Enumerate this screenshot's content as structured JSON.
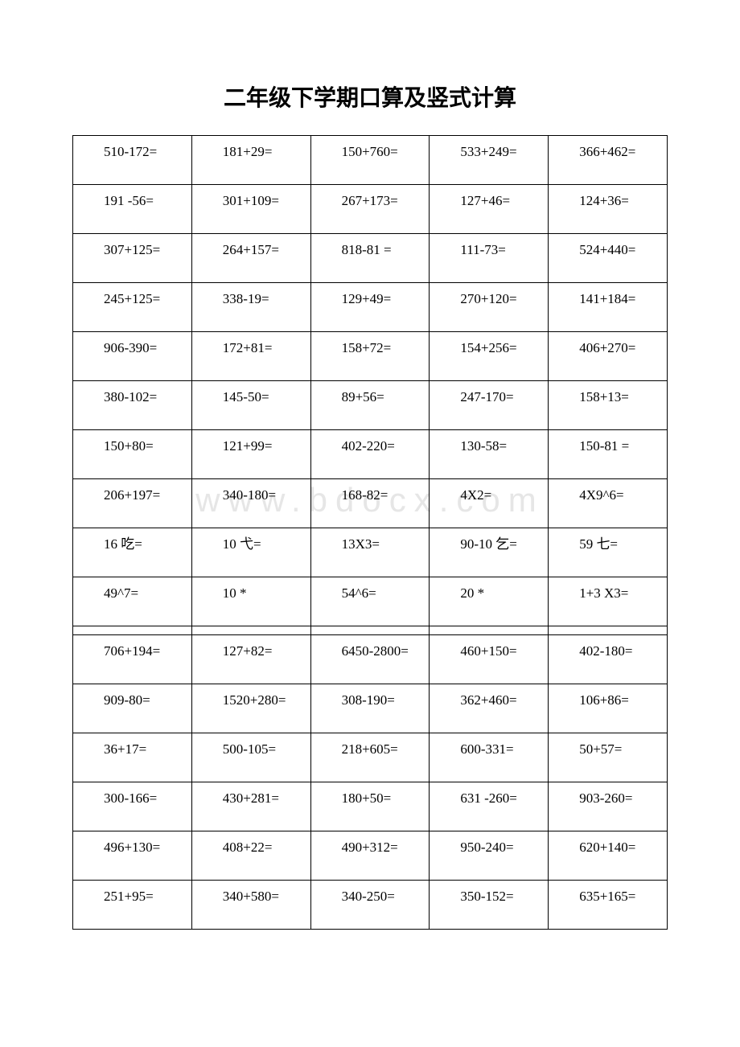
{
  "title": "二年级下学期口算及竖式计算",
  "watermark": "www.bdocx.com",
  "table": {
    "border_color": "#000000",
    "background_color": "#ffffff",
    "text_color": "#000000",
    "font_size_pt": 13,
    "columns": 5,
    "rows": [
      [
        "510-172=",
        "181+29=",
        "150+760=",
        "533+249=",
        "366+462="
      ],
      [
        "191 -56=",
        "301+109=",
        "267+173=",
        "127+46=",
        "124+36="
      ],
      [
        "307+125=",
        "264+157=",
        "818-81 =",
        "111-73=",
        "524+440="
      ],
      [
        "245+125=",
        "338-19=",
        "129+49=",
        "270+120=",
        "141+184="
      ],
      [
        "906-390=",
        "172+81=",
        "158+72=",
        "154+256=",
        "406+270="
      ],
      [
        "380-102=",
        "145-50=",
        "89+56=",
        "247-170=",
        "158+13="
      ],
      [
        "150+80=",
        "121+99=",
        "402-220=",
        "130-58=",
        "150-81 ="
      ],
      [
        "206+197=",
        "340-180=",
        "168-82=",
        "4X2=",
        "4X9^6="
      ],
      [
        "16 吃=",
        "10 弋=",
        "13X3=",
        "90-10 乞=",
        "59 七="
      ],
      [
        "49^7=",
        "10 *",
        "54^6=",
        "20 *",
        "1+3 X3="
      ],
      [
        "",
        "",
        "",
        "",
        ""
      ],
      [
        "706+194=",
        "127+82=",
        "6450-2800=",
        "460+150=",
        "402-180="
      ],
      [
        "909-80=",
        "1520+280=",
        "308-190=",
        "362+460=",
        "106+86="
      ],
      [
        "36+17=",
        "500-105=",
        "218+605=",
        "600-331=",
        "50+57="
      ],
      [
        "300-166=",
        "430+281=",
        "180+50=",
        "631 -260=",
        "903-260="
      ],
      [
        "496+130=",
        "408+22=",
        "490+312=",
        "950-240=",
        "620+140="
      ],
      [
        "251+95=",
        "340+580=",
        "340-250=",
        "350-152=",
        "635+165="
      ]
    ]
  }
}
